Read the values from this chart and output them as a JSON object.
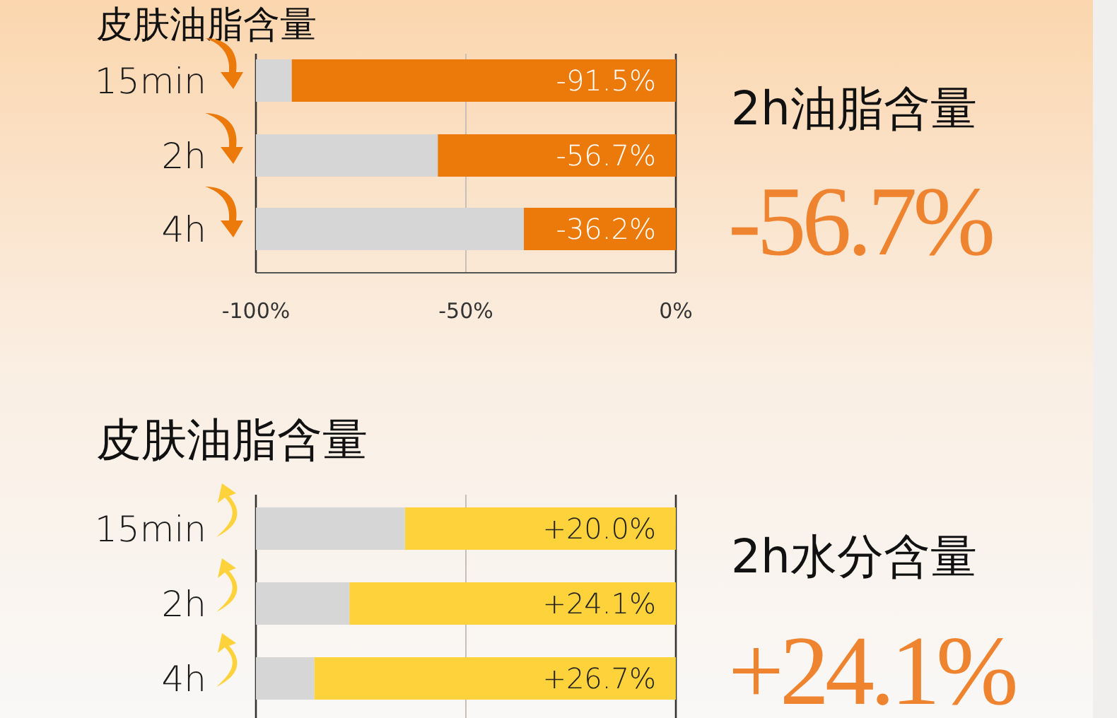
{
  "chart_data": [
    {
      "type": "bar",
      "orientation": "horizontal",
      "stacked": true,
      "title": "皮肤油脂含量",
      "categories": [
        "15min",
        "2h",
        "4h"
      ],
      "series": [
        {
          "color": "#ec7a0b",
          "values": [
            -91.5,
            -56.7,
            -36.2
          ],
          "value_labels": [
            "-91.5%",
            "-56.7%",
            "-36.2%"
          ]
        },
        {
          "color": "#d6d6d6",
          "values": [
            -8.5,
            -43.3,
            -63.8
          ]
        }
      ],
      "xlim": [
        -100,
        0
      ],
      "xticks": [
        {
          "value": -100,
          "label": "-100%"
        },
        {
          "value": -50,
          "label": "-50%"
        },
        {
          "value": 0,
          "label": "0%"
        }
      ],
      "grid": "x",
      "annotations": [
        "2h油脂含量",
        "-56.7%"
      ]
    },
    {
      "type": "bar",
      "orientation": "horizontal",
      "stacked": true,
      "title": "皮肤油脂含量",
      "categories": [
        "15min",
        "2h",
        "4h"
      ],
      "series": [
        {
          "color": "#fdd23a",
          "values": [
            20.0,
            24.1,
            26.7
          ],
          "value_labels": [
            "+20.0%",
            "+24.1%",
            "+26.7%"
          ]
        },
        {
          "color": "#d6d6d6",
          "values": [
            11.0,
            6.9,
            4.3
          ]
        }
      ],
      "xlim": [
        31,
        0
      ],
      "ref_lines": [
        {
          "axis": "x",
          "value": 15.5,
          "color": "#c8c0b8"
        }
      ],
      "tick_labels": "y",
      "annotations": [
        "2h水分含量",
        "+24.1%"
      ]
    }
  ]
}
